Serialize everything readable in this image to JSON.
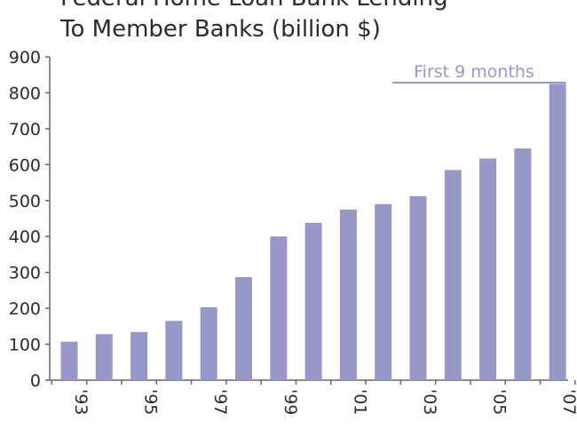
{
  "chart_data": {
    "type": "bar",
    "title_lines": [
      "Federal Home Loan Bank Lending",
      "To Member Banks (billion $)"
    ],
    "categories": [
      "1993",
      "1994",
      "1995",
      "1996",
      "1997",
      "1998",
      "1999",
      "2000",
      "2001",
      "2002",
      "2003",
      "2004",
      "2005",
      "2006",
      "2007"
    ],
    "x_tick_labels": [
      {
        "index": 0,
        "label": "'93"
      },
      {
        "index": 2,
        "label": "'95"
      },
      {
        "index": 4,
        "label": "'97"
      },
      {
        "index": 6,
        "label": "'99"
      },
      {
        "index": 8,
        "label": "'01"
      },
      {
        "index": 10,
        "label": "'03"
      },
      {
        "index": 12,
        "label": "'05"
      },
      {
        "index": 14,
        "label": "'07"
      }
    ],
    "values": [
      107,
      128,
      134,
      165,
      203,
      287,
      400,
      438,
      475,
      490,
      512,
      585,
      617,
      645,
      825
    ],
    "ylim": [
      0,
      900
    ],
    "yticks": [
      0,
      100,
      200,
      300,
      400,
      500,
      600,
      700,
      800,
      900
    ],
    "grid": false,
    "bar_color": "#9898c8",
    "annotation": {
      "text": "First 9 months",
      "bar_index": 14,
      "color": "#9898c8"
    }
  }
}
